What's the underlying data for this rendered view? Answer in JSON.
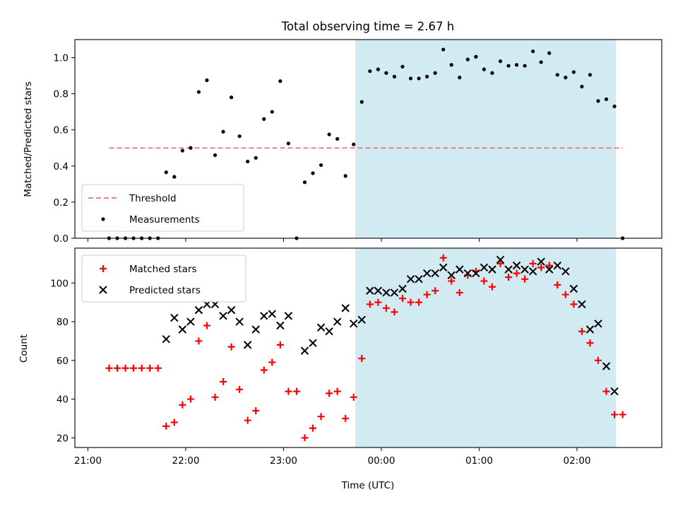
{
  "chart_data": [
    {
      "type": "scatter",
      "title": "Total observing time = 2.67 h",
      "xlabel": "",
      "ylabel": "Matched/Predicted stars",
      "ylim": [
        0,
        1.1
      ],
      "yticks": [
        0.0,
        0.2,
        0.4,
        0.6,
        0.8,
        1.0
      ],
      "ytick_labels": [
        "0.0",
        "0.2",
        "0.4",
        "0.6",
        "0.8",
        "1.0"
      ],
      "xlim": [
        "21:00",
        "02:45"
      ],
      "xticks": [
        "21:00",
        "22:00",
        "23:00",
        "00:00",
        "01:00",
        "02:00"
      ],
      "shaded_span": {
        "x_start": "23:44",
        "x_end": "02:24",
        "color": "#add8e6"
      },
      "threshold": {
        "name": "Threshold",
        "y": 0.5,
        "x_start": "21:13",
        "x_end": "02:28",
        "color": "#f08080",
        "style": "dashed"
      },
      "legend": {
        "location": "lower left",
        "entries": [
          "Threshold",
          "Measurements"
        ]
      },
      "series": [
        {
          "name": "Measurements",
          "marker": "dot",
          "color": "#000000",
          "points": [
            [
              "21:13",
              0.0
            ],
            [
              "21:18",
              0.0
            ],
            [
              "21:23",
              0.0
            ],
            [
              "21:28",
              0.0
            ],
            [
              "21:33",
              0.0
            ],
            [
              "21:38",
              0.0
            ],
            [
              "21:43",
              0.0
            ],
            [
              "21:48",
              0.365
            ],
            [
              "21:53",
              0.34
            ],
            [
              "21:58",
              0.485
            ],
            [
              "22:03",
              0.5
            ],
            [
              "22:08",
              0.81
            ],
            [
              "22:13",
              0.875
            ],
            [
              "22:18",
              0.46
            ],
            [
              "22:23",
              0.59
            ],
            [
              "22:28",
              0.78
            ],
            [
              "22:33",
              0.565
            ],
            [
              "22:38",
              0.425
            ],
            [
              "22:43",
              0.445
            ],
            [
              "22:48",
              0.66
            ],
            [
              "22:53",
              0.7
            ],
            [
              "22:58",
              0.87
            ],
            [
              "23:03",
              0.525
            ],
            [
              "23:08",
              0.0
            ],
            [
              "23:13",
              0.31
            ],
            [
              "23:18",
              0.36
            ],
            [
              "23:23",
              0.405
            ],
            [
              "23:28",
              0.575
            ],
            [
              "23:33",
              0.55
            ],
            [
              "23:38",
              0.345
            ],
            [
              "23:43",
              0.52
            ],
            [
              "23:48",
              0.755
            ],
            [
              "23:53",
              0.925
            ],
            [
              "23:58",
              0.935
            ],
            [
              "00:03",
              0.915
            ],
            [
              "00:08",
              0.895
            ],
            [
              "00:13",
              0.95
            ],
            [
              "00:18",
              0.885
            ],
            [
              "00:23",
              0.885
            ],
            [
              "00:28",
              0.895
            ],
            [
              "00:33",
              0.915
            ],
            [
              "00:38",
              1.045
            ],
            [
              "00:43",
              0.96
            ],
            [
              "00:48",
              0.89
            ],
            [
              "00:53",
              0.99
            ],
            [
              "00:58",
              1.005
            ],
            [
              "01:03",
              0.935
            ],
            [
              "01:08",
              0.915
            ],
            [
              "01:13",
              0.98
            ],
            [
              "01:18",
              0.955
            ],
            [
              "01:23",
              0.96
            ],
            [
              "01:28",
              0.955
            ],
            [
              "01:33",
              1.035
            ],
            [
              "01:38",
              0.975
            ],
            [
              "01:43",
              1.025
            ],
            [
              "01:48",
              0.905
            ],
            [
              "01:53",
              0.89
            ],
            [
              "01:58",
              0.92
            ],
            [
              "02:03",
              0.84
            ],
            [
              "02:08",
              0.905
            ],
            [
              "02:13",
              0.76
            ],
            [
              "02:18",
              0.77
            ],
            [
              "02:23",
              0.73
            ],
            [
              "02:28",
              0.0
            ]
          ]
        }
      ]
    },
    {
      "type": "scatter",
      "title": "",
      "xlabel": "Time (UTC)",
      "ylabel": "Count",
      "ylim": [
        15,
        118
      ],
      "yticks": [
        20,
        40,
        60,
        80,
        100
      ],
      "ytick_labels": [
        "20",
        "40",
        "60",
        "80",
        "100"
      ],
      "xlim": [
        "21:00",
        "02:45"
      ],
      "xticks": [
        "21:00",
        "22:00",
        "23:00",
        "00:00",
        "01:00",
        "02:00"
      ],
      "xtick_labels": [
        "21:00",
        "22:00",
        "23:00",
        "00:00",
        "01:00",
        "02:00"
      ],
      "shaded_span": {
        "x_start": "23:44",
        "x_end": "02:24",
        "color": "#add8e6"
      },
      "legend": {
        "location": "upper left",
        "entries": [
          "Matched stars",
          "Predicted stars"
        ]
      },
      "series": [
        {
          "name": "Matched stars",
          "marker": "plus",
          "color": "#ff0000",
          "points": [
            [
              "21:13",
              56
            ],
            [
              "21:18",
              56
            ],
            [
              "21:23",
              56
            ],
            [
              "21:28",
              56
            ],
            [
              "21:33",
              56
            ],
            [
              "21:38",
              56
            ],
            [
              "21:43",
              56
            ],
            [
              "21:48",
              26
            ],
            [
              "21:53",
              28
            ],
            [
              "21:58",
              37
            ],
            [
              "22:03",
              40
            ],
            [
              "22:08",
              70
            ],
            [
              "22:13",
              78
            ],
            [
              "22:18",
              41
            ],
            [
              "22:23",
              49
            ],
            [
              "22:28",
              67
            ],
            [
              "22:33",
              45
            ],
            [
              "22:38",
              29
            ],
            [
              "22:43",
              34
            ],
            [
              "22:48",
              55
            ],
            [
              "22:53",
              59
            ],
            [
              "22:58",
              68
            ],
            [
              "23:03",
              44
            ],
            [
              "23:08",
              44
            ],
            [
              "23:13",
              20
            ],
            [
              "23:18",
              25
            ],
            [
              "23:23",
              31
            ],
            [
              "23:28",
              43
            ],
            [
              "23:33",
              44
            ],
            [
              "23:38",
              30
            ],
            [
              "23:43",
              41
            ],
            [
              "23:48",
              61
            ],
            [
              "23:53",
              89
            ],
            [
              "23:58",
              90
            ],
            [
              "00:03",
              87
            ],
            [
              "00:08",
              85
            ],
            [
              "00:13",
              92
            ],
            [
              "00:18",
              90
            ],
            [
              "00:23",
              90
            ],
            [
              "00:28",
              94
            ],
            [
              "00:33",
              96
            ],
            [
              "00:38",
              113
            ],
            [
              "00:43",
              101
            ],
            [
              "00:48",
              95
            ],
            [
              "00:53",
              104
            ],
            [
              "00:58",
              106
            ],
            [
              "01:03",
              101
            ],
            [
              "01:08",
              98
            ],
            [
              "01:13",
              110
            ],
            [
              "01:18",
              103
            ],
            [
              "01:23",
              105
            ],
            [
              "01:28",
              102
            ],
            [
              "01:33",
              110
            ],
            [
              "01:38",
              108
            ],
            [
              "01:43",
              109
            ],
            [
              "01:48",
              99
            ],
            [
              "01:53",
              94
            ],
            [
              "01:58",
              89
            ],
            [
              "02:03",
              75
            ],
            [
              "02:08",
              69
            ],
            [
              "02:13",
              60
            ],
            [
              "02:18",
              44
            ],
            [
              "02:23",
              32
            ],
            [
              "02:28",
              32
            ]
          ]
        },
        {
          "name": "Predicted stars",
          "marker": "x",
          "color": "#000000",
          "points": [
            [
              "21:48",
              71
            ],
            [
              "21:53",
              82
            ],
            [
              "21:58",
              76
            ],
            [
              "22:03",
              80
            ],
            [
              "22:08",
              86
            ],
            [
              "22:13",
              89
            ],
            [
              "22:18",
              89
            ],
            [
              "22:23",
              83
            ],
            [
              "22:28",
              86
            ],
            [
              "22:33",
              80
            ],
            [
              "22:38",
              68
            ],
            [
              "22:43",
              76
            ],
            [
              "22:48",
              83
            ],
            [
              "22:53",
              84
            ],
            [
              "22:58",
              78
            ],
            [
              "23:03",
              83
            ],
            [
              "23:13",
              65
            ],
            [
              "23:18",
              69
            ],
            [
              "23:23",
              77
            ],
            [
              "23:28",
              75
            ],
            [
              "23:33",
              80
            ],
            [
              "23:38",
              87
            ],
            [
              "23:43",
              79
            ],
            [
              "23:48",
              81
            ],
            [
              "23:53",
              96
            ],
            [
              "23:58",
              96
            ],
            [
              "00:03",
              95
            ],
            [
              "00:08",
              95
            ],
            [
              "00:13",
              97
            ],
            [
              "00:18",
              102
            ],
            [
              "00:23",
              102
            ],
            [
              "00:28",
              105
            ],
            [
              "00:33",
              105
            ],
            [
              "00:38",
              108
            ],
            [
              "00:43",
              104
            ],
            [
              "00:48",
              107
            ],
            [
              "00:53",
              105
            ],
            [
              "00:58",
              105
            ],
            [
              "01:03",
              108
            ],
            [
              "01:08",
              107
            ],
            [
              "01:13",
              112
            ],
            [
              "01:18",
              107
            ],
            [
              "01:23",
              109
            ],
            [
              "01:28",
              107
            ],
            [
              "01:33",
              106
            ],
            [
              "01:38",
              111
            ],
            [
              "01:43",
              107
            ],
            [
              "01:48",
              109
            ],
            [
              "01:53",
              106
            ],
            [
              "01:58",
              97
            ],
            [
              "02:03",
              89
            ],
            [
              "02:08",
              76
            ],
            [
              "02:13",
              79
            ],
            [
              "02:18",
              57
            ],
            [
              "02:23",
              44
            ]
          ]
        }
      ]
    }
  ]
}
